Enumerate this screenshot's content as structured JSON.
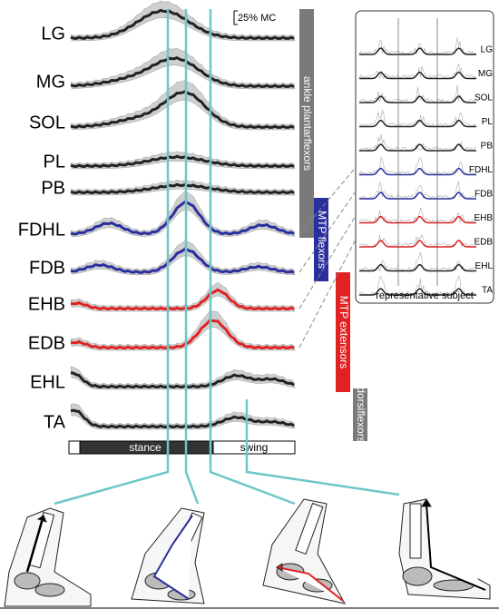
{
  "scale_bar": "25% MC",
  "muscles": [
    {
      "label": "LG"
    },
    {
      "label": "MG"
    },
    {
      "label": "SOL"
    },
    {
      "label": "PL"
    },
    {
      "label": "PB"
    },
    {
      "label": "FDHL"
    },
    {
      "label": "FDB"
    },
    {
      "label": "EHB"
    },
    {
      "label": "EDB"
    },
    {
      "label": "EHL"
    },
    {
      "label": "TA"
    }
  ],
  "groups": [
    {
      "label": "ankle plantarflexors"
    },
    {
      "label": "MTP flexors"
    },
    {
      "label": "MTP extensors"
    },
    {
      "label": "dorsiflexors"
    }
  ],
  "phases": {
    "stance": "stance",
    "swing": "swing"
  },
  "panel": {
    "title": "representative subject",
    "labels": [
      "LG",
      "MG",
      "SOL",
      "PL",
      "PB",
      "FDHL",
      "FDB",
      "EHB",
      "EDB",
      "EHL",
      "TA"
    ]
  }
}
